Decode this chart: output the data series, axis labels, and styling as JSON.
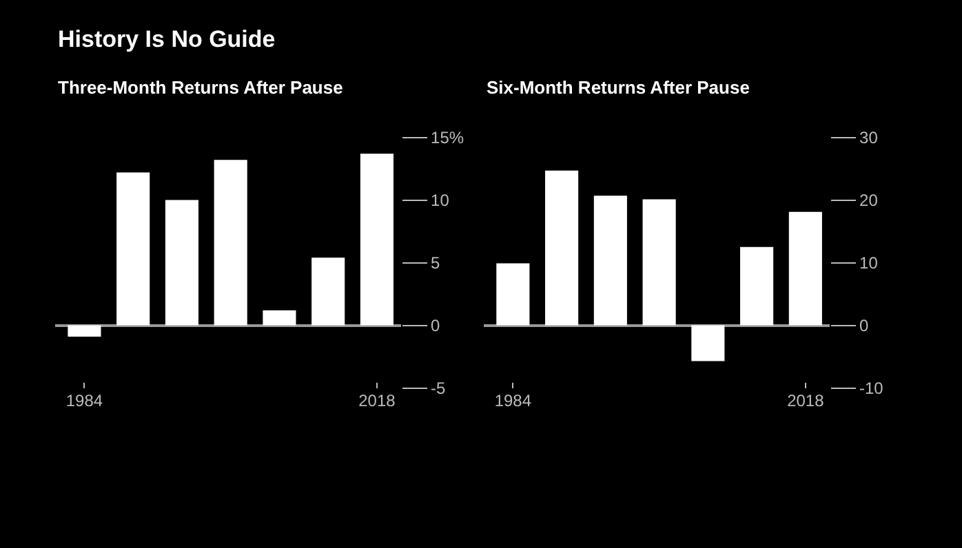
{
  "chart_data": [
    {
      "type": "bar",
      "title": "Three-Month Returns After Pause",
      "annotations": [
        "History Is No Guide"
      ],
      "categories": [
        "1984",
        null,
        null,
        null,
        null,
        null,
        "2018"
      ],
      "values": [
        -0.9,
        12.2,
        10.0,
        13.2,
        1.2,
        5.4,
        13.7
      ],
      "color": "#ffffff",
      "ylim": [
        -5,
        15
      ],
      "yticks": [
        {
          "value": -5,
          "label": "-5"
        },
        0,
        5,
        10,
        {
          "value": 15,
          "label": "15%"
        }
      ],
      "grid": "y"
    },
    {
      "type": "bar",
      "title": "Six-Month Returns After Pause",
      "categories": [
        "1984",
        null,
        null,
        null,
        null,
        null,
        "2018"
      ],
      "values": [
        9.9,
        24.7,
        20.7,
        20.1,
        -5.7,
        12.5,
        18.1
      ],
      "color": "#ffffff",
      "ylim": [
        -10,
        30
      ],
      "yticks": [
        {
          "value": -10,
          "label": "-10"
        },
        0,
        10,
        20,
        30
      ],
      "grid": "y"
    }
  ]
}
